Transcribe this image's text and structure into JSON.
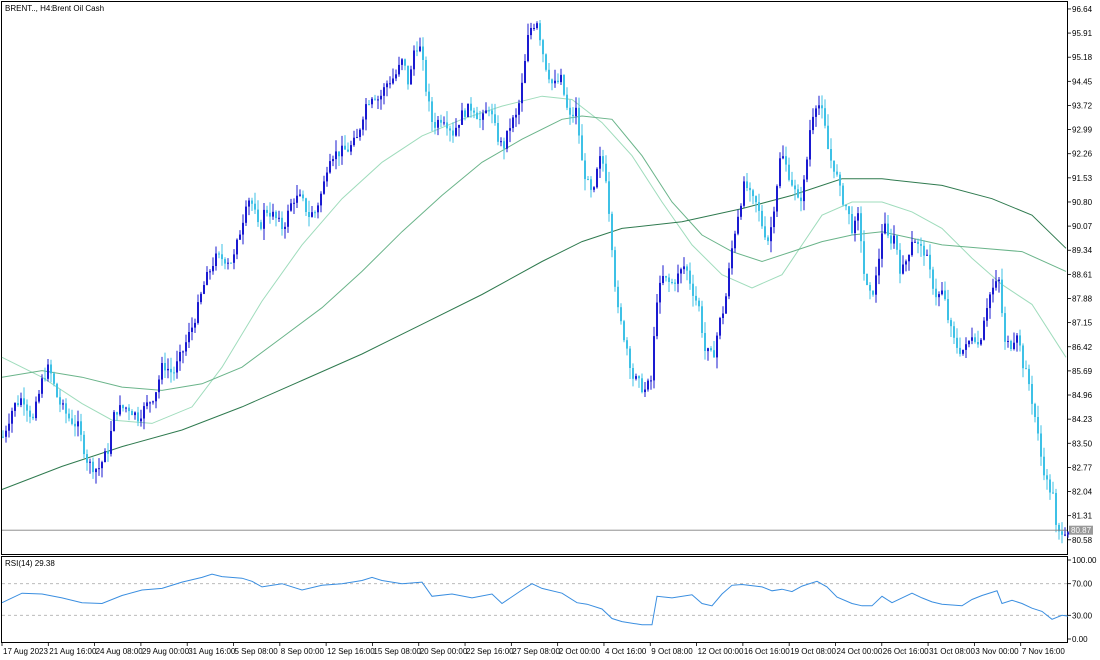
{
  "main_header": {
    "symbol": "BRENT.., H4:",
    "instrument": "Brent Oil Cash"
  },
  "colors": {
    "bull_candle": "#1a1ad0",
    "bear_candle": "#3ec1e6",
    "ma_fast": "#9fdcbc",
    "ma_mid": "#6ab48a",
    "ma_slow": "#2f7a4f",
    "rsi_line": "#3a8ee0",
    "price_tag_bg": "#9a9a9a"
  },
  "price_axis": {
    "labels": [
      "96.64",
      "95.91",
      "95.18",
      "94.45",
      "93.72",
      "92.99",
      "92.26",
      "91.53",
      "90.80",
      "90.07",
      "89.34",
      "88.61",
      "87.88",
      "87.15",
      "86.42",
      "85.69",
      "84.96",
      "84.23",
      "83.50",
      "82.77",
      "82.04",
      "81.31",
      "80.58"
    ],
    "current_price": "80.87"
  },
  "rsi": {
    "label": "RSI(14) 29.38",
    "axis_labels": [
      "100.00",
      "70.00",
      "30.00",
      "0.00"
    ],
    "levels": [
      70,
      30
    ],
    "range": [
      0,
      100
    ]
  },
  "time_axis": {
    "labels": [
      "17 Aug 2023",
      "21 Aug 16:00",
      "24 Aug 08:00",
      "29 Aug 00:00",
      "31 Aug 16:00",
      "5 Sep 08:00",
      "8 Sep 00:00",
      "12 Sep 16:00",
      "15 Sep 08:00",
      "20 Sep 00:00",
      "22 Sep 16:00",
      "27 Sep 08:00",
      "2 Oct 00:00",
      "4 Oct 16:00",
      "9 Oct 08:00",
      "12 Oct 00:00",
      "16 Oct 16:00",
      "19 Oct 08:00",
      "24 Oct 00:00",
      "26 Oct 16:00",
      "31 Oct 08:00",
      "3 Nov 00:00",
      "7 Nov 16:00"
    ]
  },
  "chart_data": {
    "type": "candlestick",
    "title": "BRENT.., H4: Brent Oil Cash",
    "timeframe": "H4",
    "ylim": [
      80.15,
      96.85
    ],
    "price_path": [
      [
        0,
        83.7
      ],
      [
        10,
        84.6
      ],
      [
        20,
        84.9
      ],
      [
        30,
        84.2
      ],
      [
        40,
        85.5
      ],
      [
        46,
        85.8
      ],
      [
        55,
        84.8
      ],
      [
        65,
        84.3
      ],
      [
        75,
        84.0
      ],
      [
        85,
        82.9
      ],
      [
        95,
        82.7
      ],
      [
        105,
        83.3
      ],
      [
        112,
        84.5
      ],
      [
        125,
        84.6
      ],
      [
        135,
        84.3
      ],
      [
        145,
        84.7
      ],
      [
        152,
        85.0
      ],
      [
        160,
        85.9
      ],
      [
        170,
        85.6
      ],
      [
        180,
        86.3
      ],
      [
        190,
        87.1
      ],
      [
        195,
        87.6
      ],
      [
        200,
        88.2
      ],
      [
        205,
        88.6
      ],
      [
        212,
        89.1
      ],
      [
        220,
        89.1
      ],
      [
        230,
        89.0
      ],
      [
        240,
        90.3
      ],
      [
        244,
        91.0
      ],
      [
        250,
        90.7
      ],
      [
        256,
        89.9
      ],
      [
        262,
        90.6
      ],
      [
        270,
        90.4
      ],
      [
        280,
        90.0
      ],
      [
        290,
        90.9
      ],
      [
        298,
        90.9
      ],
      [
        306,
        90.4
      ],
      [
        312,
        90.5
      ],
      [
        320,
        91.2
      ],
      [
        326,
        92.2
      ],
      [
        336,
        92.3
      ],
      [
        346,
        92.4
      ],
      [
        354,
        92.7
      ],
      [
        362,
        93.7
      ],
      [
        370,
        94.1
      ],
      [
        376,
        93.9
      ],
      [
        384,
        94.4
      ],
      [
        392,
        94.6
      ],
      [
        400,
        95.1
      ],
      [
        406,
        94.3
      ],
      [
        412,
        95.6
      ],
      [
        418,
        95.4
      ],
      [
        424,
        94.0
      ],
      [
        430,
        93.1
      ],
      [
        440,
        93.4
      ],
      [
        450,
        92.9
      ],
      [
        460,
        93.5
      ],
      [
        470,
        93.7
      ],
      [
        478,
        93.2
      ],
      [
        486,
        93.7
      ],
      [
        494,
        92.8
      ],
      [
        500,
        92.4
      ],
      [
        508,
        93.2
      ],
      [
        514,
        93.4
      ],
      [
        520,
        94.5
      ],
      [
        526,
        96.0
      ],
      [
        534,
        96.3
      ],
      [
        542,
        95.0
      ],
      [
        550,
        94.3
      ],
      [
        558,
        94.5
      ],
      [
        566,
        93.3
      ],
      [
        574,
        93.6
      ],
      [
        578,
        92.1
      ],
      [
        584,
        91.4
      ],
      [
        590,
        90.9
      ],
      [
        596,
        92.1
      ],
      [
        602,
        91.9
      ],
      [
        608,
        89.9
      ],
      [
        614,
        87.6
      ],
      [
        618,
        87.1
      ],
      [
        624,
        86.4
      ],
      [
        630,
        85.5
      ],
      [
        636,
        85.3
      ],
      [
        642,
        85.1
      ],
      [
        648,
        85.4
      ],
      [
        654,
        87.9
      ],
      [
        660,
        88.5
      ],
      [
        668,
        88.3
      ],
      [
        676,
        88.6
      ],
      [
        682,
        88.9
      ],
      [
        690,
        88.1
      ],
      [
        696,
        87.6
      ],
      [
        702,
        86.3
      ],
      [
        710,
        86.1
      ],
      [
        716,
        87.1
      ],
      [
        722,
        87.7
      ],
      [
        728,
        89.2
      ],
      [
        734,
        90.3
      ],
      [
        742,
        91.4
      ],
      [
        748,
        90.9
      ],
      [
        754,
        90.7
      ],
      [
        760,
        90.0
      ],
      [
        766,
        89.6
      ],
      [
        772,
        90.9
      ],
      [
        778,
        92.3
      ],
      [
        784,
        91.8
      ],
      [
        790,
        91.3
      ],
      [
        796,
        90.7
      ],
      [
        802,
        91.5
      ],
      [
        808,
        93.3
      ],
      [
        814,
        93.9
      ],
      [
        820,
        93.4
      ],
      [
        826,
        92.2
      ],
      [
        832,
        91.8
      ],
      [
        838,
        91.0
      ],
      [
        844,
        90.6
      ],
      [
        850,
        89.9
      ],
      [
        856,
        90.4
      ],
      [
        862,
        88.3
      ],
      [
        868,
        87.9
      ],
      [
        874,
        88.6
      ],
      [
        880,
        90.2
      ],
      [
        886,
        89.6
      ],
      [
        892,
        89.8
      ],
      [
        898,
        88.6
      ],
      [
        904,
        89.1
      ],
      [
        910,
        89.8
      ],
      [
        916,
        89.4
      ],
      [
        922,
        89.3
      ],
      [
        928,
        88.5
      ],
      [
        934,
        87.9
      ],
      [
        940,
        88.1
      ],
      [
        946,
        87.1
      ],
      [
        952,
        86.5
      ],
      [
        958,
        86.3
      ],
      [
        964,
        86.4
      ],
      [
        970,
        86.9
      ],
      [
        976,
        86.4
      ],
      [
        982,
        87.5
      ],
      [
        988,
        88.1
      ],
      [
        996,
        88.4
      ],
      [
        1002,
        86.5
      ],
      [
        1008,
        86.5
      ],
      [
        1014,
        86.9
      ],
      [
        1020,
        85.9
      ],
      [
        1026,
        85.3
      ],
      [
        1032,
        84.3
      ],
      [
        1038,
        83.1
      ],
      [
        1044,
        82.3
      ],
      [
        1050,
        81.9
      ],
      [
        1054,
        80.6
      ],
      [
        1058,
        80.9
      ],
      [
        1066,
        80.9
      ]
    ],
    "candle_step": 3,
    "moving_averages": [
      {
        "name": "MA fast",
        "path": [
          [
            0,
            86.1
          ],
          [
            40,
            85.5
          ],
          [
            80,
            84.7
          ],
          [
            110,
            84.2
          ],
          [
            150,
            84.1
          ],
          [
            190,
            84.6
          ],
          [
            220,
            85.8
          ],
          [
            260,
            87.8
          ],
          [
            300,
            89.5
          ],
          [
            340,
            90.9
          ],
          [
            380,
            92.0
          ],
          [
            420,
            92.8
          ],
          [
            460,
            93.3
          ],
          [
            500,
            93.7
          ],
          [
            540,
            94.0
          ],
          [
            570,
            93.9
          ],
          [
            600,
            93.2
          ],
          [
            630,
            92.2
          ],
          [
            660,
            90.8
          ],
          [
            690,
            89.5
          ],
          [
            720,
            88.6
          ],
          [
            750,
            88.2
          ],
          [
            780,
            88.6
          ],
          [
            800,
            89.5
          ],
          [
            820,
            90.4
          ],
          [
            850,
            90.8
          ],
          [
            880,
            90.8
          ],
          [
            910,
            90.5
          ],
          [
            940,
            90.0
          ],
          [
            970,
            89.1
          ],
          [
            1000,
            88.3
          ],
          [
            1030,
            87.7
          ],
          [
            1064,
            86.1
          ]
        ]
      },
      {
        "name": "MA mid",
        "path": [
          [
            0,
            85.5
          ],
          [
            40,
            85.7
          ],
          [
            80,
            85.5
          ],
          [
            120,
            85.2
          ],
          [
            160,
            85.1
          ],
          [
            200,
            85.3
          ],
          [
            240,
            85.8
          ],
          [
            280,
            86.7
          ],
          [
            320,
            87.6
          ],
          [
            360,
            88.7
          ],
          [
            400,
            89.9
          ],
          [
            440,
            91.0
          ],
          [
            480,
            92.0
          ],
          [
            520,
            92.7
          ],
          [
            560,
            93.3
          ],
          [
            580,
            93.4
          ],
          [
            610,
            93.3
          ],
          [
            640,
            92.2
          ],
          [
            670,
            90.8
          ],
          [
            700,
            89.8
          ],
          [
            730,
            89.3
          ],
          [
            760,
            89.0
          ],
          [
            790,
            89.3
          ],
          [
            820,
            89.6
          ],
          [
            850,
            89.8
          ],
          [
            880,
            89.9
          ],
          [
            910,
            89.7
          ],
          [
            940,
            89.5
          ],
          [
            980,
            89.4
          ],
          [
            1020,
            89.3
          ],
          [
            1064,
            88.7
          ]
        ]
      },
      {
        "name": "MA slow",
        "path": [
          [
            0,
            82.1
          ],
          [
            60,
            82.8
          ],
          [
            120,
            83.4
          ],
          [
            180,
            83.9
          ],
          [
            240,
            84.6
          ],
          [
            300,
            85.4
          ],
          [
            360,
            86.2
          ],
          [
            420,
            87.1
          ],
          [
            480,
            88.0
          ],
          [
            540,
            89.0
          ],
          [
            580,
            89.6
          ],
          [
            620,
            90.0
          ],
          [
            680,
            90.2
          ],
          [
            740,
            90.6
          ],
          [
            790,
            91.0
          ],
          [
            840,
            91.5
          ],
          [
            880,
            91.5
          ],
          [
            940,
            91.3
          ],
          [
            990,
            90.9
          ],
          [
            1030,
            90.4
          ],
          [
            1064,
            89.4
          ]
        ]
      }
    ],
    "rsi_path": [
      [
        0,
        46
      ],
      [
        20,
        58
      ],
      [
        40,
        57
      ],
      [
        60,
        52
      ],
      [
        80,
        46
      ],
      [
        100,
        45
      ],
      [
        120,
        55
      ],
      [
        140,
        62
      ],
      [
        160,
        64
      ],
      [
        180,
        72
      ],
      [
        200,
        78
      ],
      [
        210,
        82
      ],
      [
        220,
        79
      ],
      [
        240,
        77
      ],
      [
        250,
        73
      ],
      [
        260,
        66
      ],
      [
        280,
        70
      ],
      [
        300,
        62
      ],
      [
        320,
        68
      ],
      [
        340,
        70
      ],
      [
        360,
        74
      ],
      [
        370,
        78
      ],
      [
        380,
        74
      ],
      [
        400,
        70
      ],
      [
        420,
        72
      ],
      [
        430,
        54
      ],
      [
        450,
        57
      ],
      [
        470,
        52
      ],
      [
        490,
        57
      ],
      [
        500,
        45
      ],
      [
        520,
        62
      ],
      [
        530,
        70
      ],
      [
        540,
        64
      ],
      [
        560,
        58
      ],
      [
        575,
        46
      ],
      [
        585,
        44
      ],
      [
        600,
        38
      ],
      [
        610,
        26
      ],
      [
        620,
        22
      ],
      [
        640,
        18
      ],
      [
        650,
        18
      ],
      [
        655,
        54
      ],
      [
        670,
        52
      ],
      [
        690,
        56
      ],
      [
        700,
        45
      ],
      [
        710,
        42
      ],
      [
        720,
        57
      ],
      [
        730,
        68
      ],
      [
        740,
        69
      ],
      [
        760,
        66
      ],
      [
        770,
        61
      ],
      [
        780,
        63
      ],
      [
        790,
        60
      ],
      [
        800,
        67
      ],
      [
        815,
        73
      ],
      [
        825,
        66
      ],
      [
        835,
        53
      ],
      [
        850,
        45
      ],
      [
        860,
        42
      ],
      [
        870,
        42
      ],
      [
        880,
        54
      ],
      [
        890,
        46
      ],
      [
        900,
        52
      ],
      [
        910,
        58
      ],
      [
        920,
        52
      ],
      [
        930,
        47
      ],
      [
        940,
        44
      ],
      [
        960,
        42
      ],
      [
        970,
        50
      ],
      [
        980,
        55
      ],
      [
        995,
        61
      ],
      [
        1000,
        45
      ],
      [
        1010,
        49
      ],
      [
        1020,
        45
      ],
      [
        1030,
        39
      ],
      [
        1040,
        35
      ],
      [
        1050,
        25
      ],
      [
        1060,
        30
      ],
      [
        1066,
        29
      ]
    ],
    "rsi_ylim": [
      0,
      100
    ],
    "last_price": 80.87,
    "last_rsi": 29.38
  }
}
